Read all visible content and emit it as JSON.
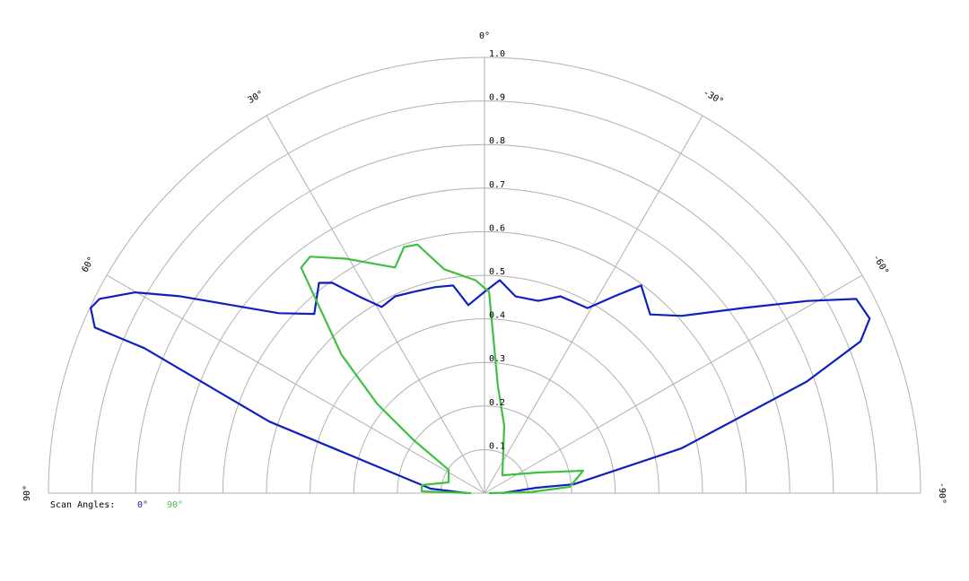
{
  "chart_data": {
    "type": "polar",
    "rlim": [
      0,
      1
    ],
    "rticks": [
      0.1,
      0.2,
      0.3,
      0.4,
      0.5,
      0.6,
      0.7,
      0.8,
      0.9,
      {
        "value": 1,
        "label": "1.0"
      }
    ],
    "thetalim": [
      90,
      -90
    ],
    "thetaticks": [
      {
        "value": 90,
        "label": "90°"
      },
      {
        "value": 60,
        "label": "60°"
      },
      {
        "value": 30,
        "label": "30°"
      },
      {
        "value": 0,
        "label": "0°"
      },
      {
        "value": -30,
        "label": "-30°"
      },
      {
        "value": -60,
        "label": "-60°"
      },
      {
        "value": -90,
        "label": "-90°"
      }
    ],
    "grid": true,
    "legend_title": "Scan Angles:",
    "legend_position": "bottom-left",
    "series": [
      {
        "name": "0°",
        "color": "#1020c0",
        "theta": [
          90,
          85.2,
          71.6,
          66.9,
          66.96,
          64.8,
          63.2,
          60.1,
          57.1,
          52.4,
          48.8,
          43.5,
          38.2,
          35.9,
          32.5,
          28.9,
          24.4,
          19.6,
          13.4,
          8.6,
          4.9,
          0,
          -4.1,
          -9.0,
          -15.6,
          -21.1,
          -29.1,
          -33.4,
          -37.0,
          -42.8,
          -48.0,
          -54.5,
          -59.2,
          -62.4,
          -65.6,
          -68.0,
          -70.9,
          -77.2,
          -84.3,
          -84.1,
          -90
        ],
        "values": [
          0.04,
          0.124,
          0.52,
          0.848,
          0.971,
          0.998,
          0.989,
          0.924,
          0.832,
          0.7,
          0.627,
          0.567,
          0.614,
          0.596,
          0.535,
          0.488,
          0.496,
          0.49,
          0.486,
          0.482,
          0.433,
          0.462,
          0.49,
          0.457,
          0.458,
          0.484,
          0.486,
          0.541,
          0.597,
          0.559,
          0.608,
          0.732,
          0.861,
          0.962,
          0.97,
          0.93,
          0.782,
          0.463,
          0.206,
          0.12,
          0.04
        ]
      },
      {
        "name": "90°",
        "color": "#40c040",
        "theta": [
          90,
          88.4,
          82.7,
          73.3,
          57.0,
          53.1,
          50.2,
          45.9,
          40.8,
          39.1,
          36.4,
          30.6,
          21.6,
          18.1,
          15.1,
          10.2,
          2.4,
          -1.3,
          -7.1,
          -16.3,
          -45,
          -69.0,
          -77.2,
          -85.8,
          -88.9,
          -90
        ],
        "values": [
          0.031,
          0.144,
          0.145,
          0.086,
          0.098,
          0.205,
          0.321,
          0.457,
          0.597,
          0.667,
          0.674,
          0.625,
          0.557,
          0.594,
          0.591,
          0.522,
          0.489,
          0.462,
          0.248,
          0.161,
          0.058,
          0.132,
          0.232,
          0.196,
          0.103,
          0.01
        ]
      }
    ]
  }
}
